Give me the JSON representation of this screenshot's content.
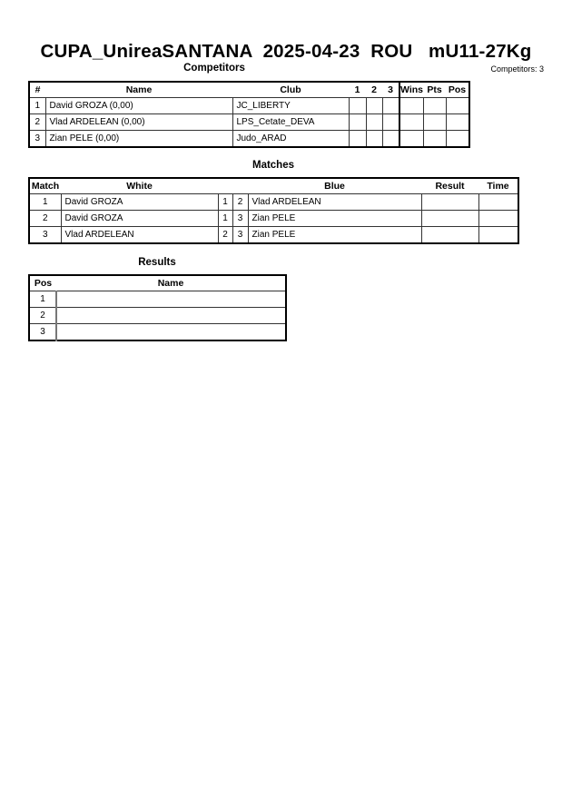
{
  "title": "CUPA_UnireaSANTANA  2025-04-23  ROU   mU11-27Kg",
  "competitors": {
    "heading": "Competitors",
    "count_label": "Competitors: 3",
    "headers": [
      "#",
      "Name",
      "Club",
      "1",
      "2",
      "3",
      "Wins",
      "Pts",
      "Pos"
    ],
    "rows": [
      {
        "no": "1",
        "name": "David GROZA  (0,00)",
        "club": "JC_LIBERTY"
      },
      {
        "no": "2",
        "name": "Vlad ARDELEAN  (0,00)",
        "club": "LPS_Cetate_DEVA"
      },
      {
        "no": "3",
        "name": "Zian PELE  (0,00)",
        "club": "Judo_ARAD"
      }
    ]
  },
  "matches": {
    "heading": "Matches",
    "headers": [
      "Match",
      "White",
      "Blue",
      "Result",
      "Time"
    ],
    "rows": [
      {
        "match": "1",
        "white": "David GROZA",
        "white_no": "1",
        "blue_no": "2",
        "blue": "Vlad ARDELEAN"
      },
      {
        "match": "2",
        "white": "David GROZA",
        "white_no": "1",
        "blue_no": "3",
        "blue": "Zian PELE"
      },
      {
        "match": "3",
        "white": "Vlad ARDELEAN",
        "white_no": "2",
        "blue_no": "3",
        "blue": "Zian PELE"
      }
    ]
  },
  "results": {
    "heading": "Results",
    "headers": [
      "Pos",
      "Name"
    ],
    "rows": [
      {
        "pos": "1"
      },
      {
        "pos": "2"
      },
      {
        "pos": "3"
      }
    ]
  }
}
